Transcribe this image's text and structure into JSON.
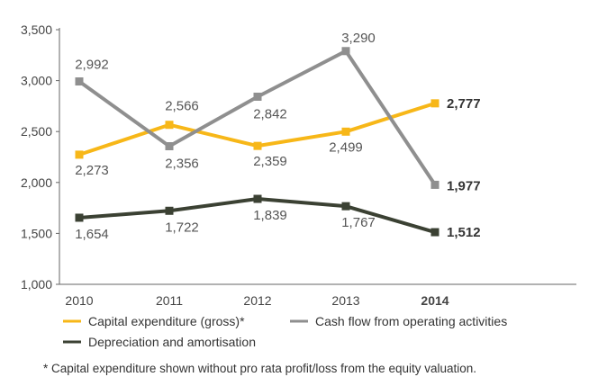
{
  "chart_data": {
    "type": "line",
    "categories": [
      "2010",
      "2011",
      "2012",
      "2013",
      "2014"
    ],
    "highlight_category": "2014",
    "ylim": [
      1000,
      3500
    ],
    "yticks": [
      "1,000",
      "1,500",
      "2,000",
      "2,500",
      "3,000",
      "3,500"
    ],
    "ytick_values": [
      1000,
      1500,
      2000,
      2500,
      3000,
      3500
    ],
    "grid": false,
    "legend_position": "bottom",
    "series": [
      {
        "name": "Capital expenditure (gross)*",
        "color": "#f7b718",
        "values": [
          2273,
          2566,
          2359,
          2499,
          2777
        ],
        "labels": [
          "2,273",
          "2,566",
          "2,359",
          "2,499",
          "2,777"
        ]
      },
      {
        "name": "Cash flow from operating activities",
        "color": "#8f8f8f",
        "values": [
          2992,
          2356,
          2842,
          3290,
          1977
        ],
        "labels": [
          "2,992",
          "2,356",
          "2,842",
          "3,290",
          "1,977"
        ]
      },
      {
        "name": "Depreciation and amortisation",
        "color": "#3b4133",
        "values": [
          1654,
          1722,
          1839,
          1767,
          1512
        ],
        "labels": [
          "1,654",
          "1,722",
          "1,839",
          "1,767",
          "1,512"
        ]
      }
    ],
    "footnote": "* Capital expenditure shown without pro rata profit/loss from the equity valuation."
  }
}
